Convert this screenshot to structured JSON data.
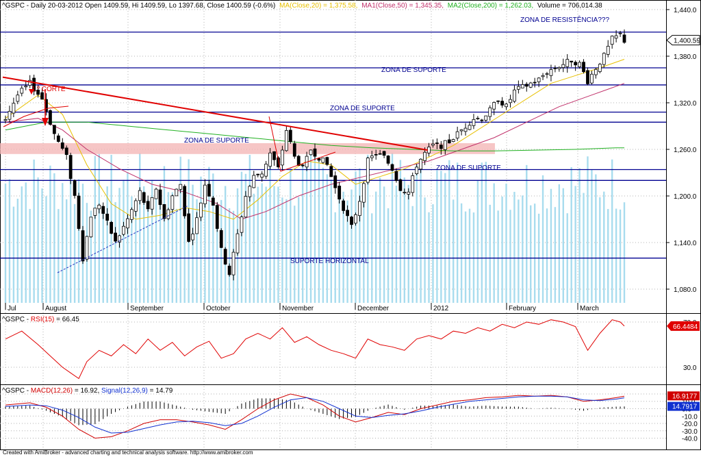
{
  "colors": {
    "candle_up": "#ffffff",
    "candle_down": "#000000",
    "ma20": "#e8c000",
    "ma50": "#c0306a",
    "ma200": "#20b020",
    "volume": "#a8dcee",
    "rsi": "#e00000",
    "macd": "#d00000",
    "signal": "#1030d0",
    "zones": "#000090",
    "trendline": "#e00000",
    "support_band": "#f4b8b8",
    "dotted_support": "#2030c0"
  },
  "header": {
    "price": "^GSPC - Daily 20-03-2012 Open 1409.59, Hi 1409.59, Lo 1397.68, Close 1400.59 (-0.6%)",
    "ma20": "MA(Close,20) = 1,375.58,",
    "ma50": "MA1(Close,50) = 1,345.35,",
    "ma200": "MA2(Close,200) = 1,262.03,",
    "volume": "Volume = 706,014.38"
  },
  "rsi_header": {
    "prefix": "^GSPC - ",
    "name": "RSI(15)",
    "value": " = 66.45"
  },
  "macd_header": {
    "prefix": "^GSPC - ",
    "macd": "MACD(12,26)",
    "macd_value": " = 16.92, ",
    "signal": "Signal(12,26,9)",
    "signal_value": " = 14.79"
  },
  "annotations": {
    "resistance": "ZONA DE RESISTÊNCIA???",
    "support1": "ZONA DE SUPORTE",
    "support2": "ZONA DE SUPORTE",
    "support3": "ZONA DE SUPORTE",
    "support4": "ZONA DE SUPORTE",
    "horizontal": "SUPORTE HORIZONTAL",
    "first_cut": "1.º CORTE"
  },
  "footer": "Created with AmiBroker - advanced charting and technical analysis software. http://www.amibroker.com",
  "chart_data": [
    {
      "type": "candlestick",
      "title": "^GSPC - Daily 20-03-2012 Open 1409.59, Hi 1409.59, Lo 1397.68, Close 1400.59 (-0.6%)",
      "x_labels": [
        "Jul",
        "August",
        "September",
        "October",
        "November",
        "December",
        "2012",
        "February",
        "March"
      ],
      "y_ticks": [
        1080,
        1140,
        1200,
        1260,
        1320,
        1380,
        1440
      ],
      "ylim": [
        1065,
        1450
      ],
      "last_close": "1,400.59",
      "close_path": [
        [
          0,
          1300
        ],
        [
          3,
          1330
        ],
        [
          6,
          1345
        ],
        [
          9,
          1325
        ],
        [
          12,
          1280
        ],
        [
          15,
          1250
        ],
        [
          17,
          1200
        ],
        [
          19,
          1120
        ],
        [
          21,
          1175
        ],
        [
          23,
          1190
        ],
        [
          25,
          1165
        ],
        [
          27,
          1140
        ],
        [
          30,
          1170
        ],
        [
          33,
          1205
        ],
        [
          35,
          1180
        ],
        [
          37,
          1210
        ],
        [
          39,
          1170
        ],
        [
          41,
          1200
        ],
        [
          43,
          1215
        ],
        [
          45,
          1140
        ],
        [
          47,
          1170
        ],
        [
          49,
          1215
        ],
        [
          51,
          1190
        ],
        [
          53,
          1130
        ],
        [
          55,
          1100
        ],
        [
          57,
          1150
        ],
        [
          59,
          1200
        ],
        [
          61,
          1225
        ],
        [
          63,
          1230
        ],
        [
          65,
          1255
        ],
        [
          67,
          1235
        ],
        [
          69,
          1285
        ],
        [
          71,
          1250
        ],
        [
          73,
          1235
        ],
        [
          75,
          1260
        ],
        [
          77,
          1250
        ],
        [
          79,
          1240
        ],
        [
          81,
          1210
        ],
        [
          83,
          1185
        ],
        [
          85,
          1160
        ],
        [
          87,
          1195
        ],
        [
          89,
          1245
        ],
        [
          91,
          1255
        ],
        [
          93,
          1250
        ],
        [
          95,
          1235
        ],
        [
          97,
          1210
        ],
        [
          99,
          1205
        ],
        [
          101,
          1240
        ],
        [
          103,
          1255
        ],
        [
          105,
          1265
        ],
        [
          107,
          1265
        ],
        [
          109,
          1270
        ],
        [
          111,
          1280
        ],
        [
          113,
          1290
        ],
        [
          115,
          1300
        ],
        [
          117,
          1300
        ],
        [
          119,
          1310
        ],
        [
          121,
          1325
        ],
        [
          123,
          1315
        ],
        [
          125,
          1335
        ],
        [
          127,
          1340
        ],
        [
          129,
          1345
        ],
        [
          131,
          1350
        ],
        [
          133,
          1360
        ],
        [
          135,
          1365
        ],
        [
          137,
          1370
        ],
        [
          139,
          1375
        ],
        [
          141,
          1370
        ],
        [
          143,
          1348
        ],
        [
          145,
          1365
        ],
        [
          147,
          1380
        ],
        [
          149,
          1402
        ],
        [
          151,
          1408
        ],
        [
          152,
          1400
        ]
      ],
      "series": [
        {
          "name": "MA(Close,20)",
          "last": 1375.58,
          "values": [
            [
              0,
              1300
            ],
            [
              8,
              1330
            ],
            [
              14,
              1305
            ],
            [
              20,
              1240
            ],
            [
              26,
              1190
            ],
            [
              32,
              1170
            ],
            [
              38,
              1175
            ],
            [
              44,
              1185
            ],
            [
              50,
              1180
            ],
            [
              56,
              1170
            ],
            [
              62,
              1195
            ],
            [
              68,
              1225
            ],
            [
              74,
              1245
            ],
            [
              80,
              1240
            ],
            [
              86,
              1215
            ],
            [
              92,
              1225
            ],
            [
              98,
              1235
            ],
            [
              104,
              1250
            ],
            [
              110,
              1265
            ],
            [
              116,
              1285
            ],
            [
              122,
              1305
            ],
            [
              128,
              1325
            ],
            [
              134,
              1345
            ],
            [
              140,
              1355
            ],
            [
              146,
              1365
            ],
            [
              152,
              1376
            ]
          ]
        },
        {
          "name": "MA1(Close,50)",
          "last": 1345.35,
          "values": [
            [
              0,
              1295
            ],
            [
              8,
              1300
            ],
            [
              14,
              1285
            ],
            [
              20,
              1260
            ],
            [
              28,
              1235
            ],
            [
              36,
              1215
            ],
            [
              44,
              1205
            ],
            [
              52,
              1190
            ],
            [
              58,
              1170
            ],
            [
              64,
              1180
            ],
            [
              72,
              1200
            ],
            [
              80,
              1215
            ],
            [
              88,
              1225
            ],
            [
              96,
              1235
            ],
            [
              104,
              1245
            ],
            [
              112,
              1260
            ],
            [
              120,
              1275
            ],
            [
              128,
              1295
            ],
            [
              136,
              1315
            ],
            [
              144,
              1330
            ],
            [
              152,
              1345
            ]
          ]
        },
        {
          "name": "MA2(Close,200)",
          "last": 1262.03,
          "values": [
            [
              0,
              1285
            ],
            [
              10,
              1295
            ],
            [
              20,
              1295
            ],
            [
              30,
              1290
            ],
            [
              40,
              1285
            ],
            [
              50,
              1280
            ],
            [
              60,
              1275
            ],
            [
              70,
              1270
            ],
            [
              80,
              1265
            ],
            [
              90,
              1262
            ],
            [
              100,
              1260
            ],
            [
              110,
              1258
            ],
            [
              120,
              1258
            ],
            [
              130,
              1259
            ],
            [
              140,
              1260
            ],
            [
              150,
              1262
            ],
            [
              152,
              1262
            ]
          ]
        }
      ],
      "volume_last": "706,014.38",
      "support_zones": [
        1365,
        1343,
        1308,
        1295,
        1234,
        1220,
        1120
      ],
      "resistance_zone": 1411,
      "support_band": [
        1254,
        1268
      ]
    },
    {
      "type": "line",
      "title": "^GSPC - RSI(15) = 66.45",
      "y_ticks": [
        30.0,
        70.0
      ],
      "ylim": [
        15,
        75
      ],
      "last": "66.4484",
      "series": [
        {
          "name": "RSI(15)",
          "values": [
            [
              0,
              55
            ],
            [
              4,
              62
            ],
            [
              8,
              50
            ],
            [
              11,
              40
            ],
            [
              14,
              30
            ],
            [
              16,
              25
            ],
            [
              18,
              20
            ],
            [
              20,
              35
            ],
            [
              23,
              45
            ],
            [
              26,
              40
            ],
            [
              29,
              50
            ],
            [
              32,
              42
            ],
            [
              35,
              55
            ],
            [
              38,
              45
            ],
            [
              41,
              52
            ],
            [
              44,
              40
            ],
            [
              47,
              48
            ],
            [
              50,
              53
            ],
            [
              53,
              38
            ],
            [
              56,
              42
            ],
            [
              59,
              55
            ],
            [
              62,
              60
            ],
            [
              65,
              55
            ],
            [
              68,
              65
            ],
            [
              71,
              52
            ],
            [
              74,
              57
            ],
            [
              77,
              50
            ],
            [
              80,
              45
            ],
            [
              83,
              42
            ],
            [
              86,
              38
            ],
            [
              89,
              55
            ],
            [
              92,
              50
            ],
            [
              95,
              48
            ],
            [
              98,
              45
            ],
            [
              101,
              55
            ],
            [
              104,
              58
            ],
            [
              107,
              55
            ],
            [
              110,
              62
            ],
            [
              113,
              60
            ],
            [
              116,
              65
            ],
            [
              119,
              62
            ],
            [
              122,
              68
            ],
            [
              125,
              65
            ],
            [
              128,
              70
            ],
            [
              131,
              68
            ],
            [
              134,
              72
            ],
            [
              137,
              70
            ],
            [
              140,
              66
            ],
            [
              143,
              45
            ],
            [
              146,
              60
            ],
            [
              149,
              72
            ],
            [
              151,
              70
            ],
            [
              152,
              66.45
            ]
          ]
        }
      ]
    },
    {
      "type": "line",
      "title": "^GSPC - MACD(12,26) = 16.92, Signal(12,26,9) = 14.79",
      "y_ticks": [
        20.0,
        10.0,
        0.0,
        -10.0,
        -20.0,
        -30.0,
        -40.0
      ],
      "ylim": [
        -45,
        25
      ],
      "macd_last": "16.9177",
      "signal_last": "14.7917",
      "series": [
        {
          "name": "MACD(12,26)",
          "values": [
            [
              0,
              5
            ],
            [
              6,
              8
            ],
            [
              10,
              2
            ],
            [
              14,
              -10
            ],
            [
              18,
              -28
            ],
            [
              22,
              -40
            ],
            [
              26,
              -38
            ],
            [
              30,
              -30
            ],
            [
              34,
              -20
            ],
            [
              38,
              -15
            ],
            [
              42,
              -15
            ],
            [
              46,
              -18
            ],
            [
              50,
              -22
            ],
            [
              54,
              -28
            ],
            [
              58,
              -15
            ],
            [
              62,
              0
            ],
            [
              66,
              12
            ],
            [
              70,
              20
            ],
            [
              74,
              15
            ],
            [
              78,
              5
            ],
            [
              82,
              -10
            ],
            [
              86,
              -18
            ],
            [
              90,
              -12
            ],
            [
              94,
              -5
            ],
            [
              98,
              -8
            ],
            [
              102,
              0
            ],
            [
              106,
              5
            ],
            [
              110,
              10
            ],
            [
              114,
              12
            ],
            [
              118,
              15
            ],
            [
              122,
              16
            ],
            [
              126,
              18
            ],
            [
              130,
              17
            ],
            [
              134,
              18
            ],
            [
              138,
              16
            ],
            [
              142,
              10
            ],
            [
              146,
              12
            ],
            [
              150,
              15
            ],
            [
              152,
              16.92
            ]
          ]
        },
        {
          "name": "Signal(12,26,9)",
          "values": [
            [
              0,
              3
            ],
            [
              6,
              5
            ],
            [
              10,
              4
            ],
            [
              14,
              -2
            ],
            [
              18,
              -12
            ],
            [
              22,
              -25
            ],
            [
              26,
              -33
            ],
            [
              30,
              -32
            ],
            [
              34,
              -27
            ],
            [
              38,
              -22
            ],
            [
              42,
              -18
            ],
            [
              46,
              -17
            ],
            [
              50,
              -19
            ],
            [
              54,
              -23
            ],
            [
              58,
              -20
            ],
            [
              62,
              -10
            ],
            [
              66,
              2
            ],
            [
              70,
              12
            ],
            [
              74,
              15
            ],
            [
              78,
              10
            ],
            [
              82,
              0
            ],
            [
              86,
              -10
            ],
            [
              90,
              -12
            ],
            [
              94,
              -9
            ],
            [
              98,
              -7
            ],
            [
              102,
              -3
            ],
            [
              106,
              2
            ],
            [
              110,
              6
            ],
            [
              114,
              10
            ],
            [
              118,
              12
            ],
            [
              122,
              14
            ],
            [
              126,
              16
            ],
            [
              130,
              17
            ],
            [
              134,
              17
            ],
            [
              138,
              16
            ],
            [
              142,
              12
            ],
            [
              146,
              11
            ],
            [
              150,
              13
            ],
            [
              152,
              14.79
            ]
          ]
        }
      ]
    }
  ]
}
